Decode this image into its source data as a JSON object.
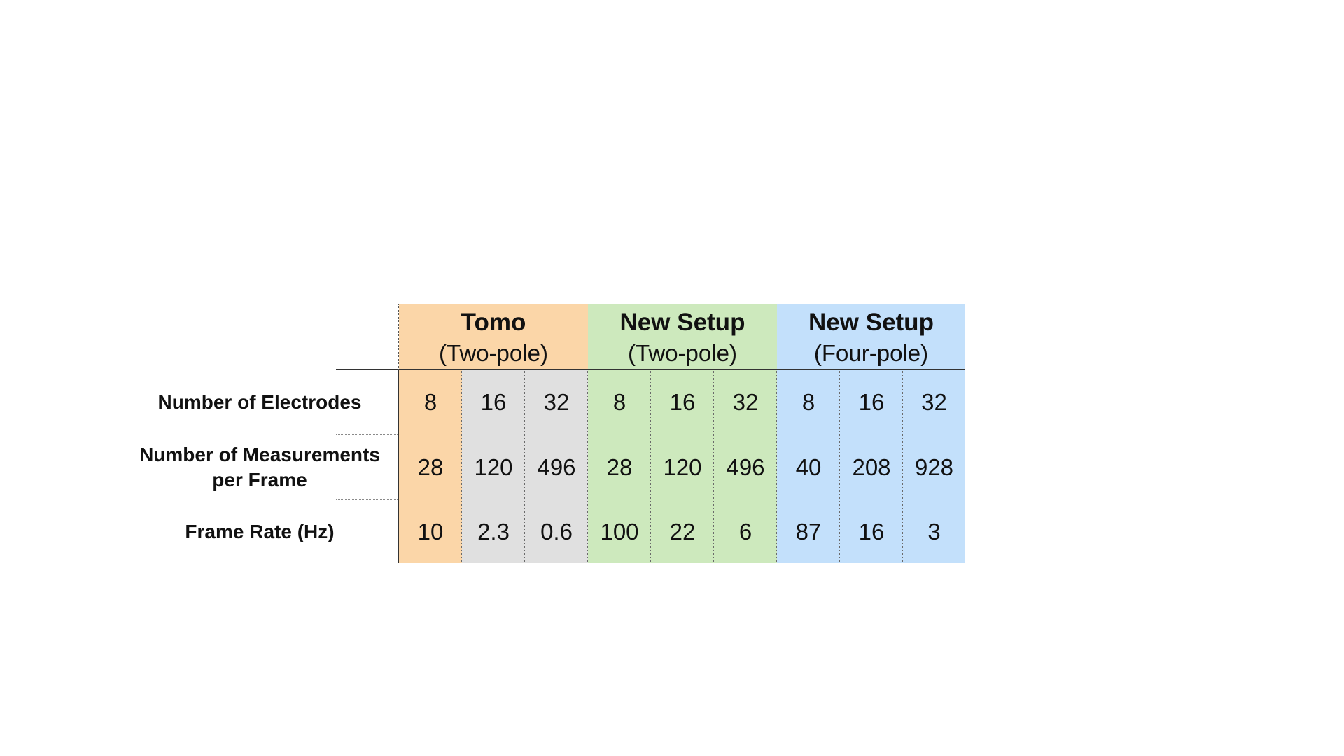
{
  "colors": {
    "tomo": "#fbd6a8",
    "tomo_gray": "#e0e0e0",
    "new_two_pole": "#cde9bd",
    "new_four_pole": "#c3e0fb"
  },
  "columns": [
    {
      "title": "Tomo",
      "subtitle": "(Two-pole)"
    },
    {
      "title": "New Setup",
      "subtitle": "(Two-pole)"
    },
    {
      "title": "New Setup",
      "subtitle": "(Four-pole)"
    }
  ],
  "rows": [
    {
      "label_lines": [
        "Number of Electrodes"
      ],
      "values": [
        "8",
        "16",
        "32",
        "8",
        "16",
        "32",
        "8",
        "16",
        "32"
      ]
    },
    {
      "label_lines": [
        "Number of Measurements",
        "per Frame"
      ],
      "values": [
        "28",
        "120",
        "496",
        "28",
        "120",
        "496",
        "40",
        "208",
        "928"
      ]
    },
    {
      "label_lines": [
        "Frame Rate (Hz)"
      ],
      "values": [
        "10",
        "2.3",
        "0.6",
        "100",
        "22",
        "6",
        "87",
        "16",
        "3"
      ]
    }
  ]
}
